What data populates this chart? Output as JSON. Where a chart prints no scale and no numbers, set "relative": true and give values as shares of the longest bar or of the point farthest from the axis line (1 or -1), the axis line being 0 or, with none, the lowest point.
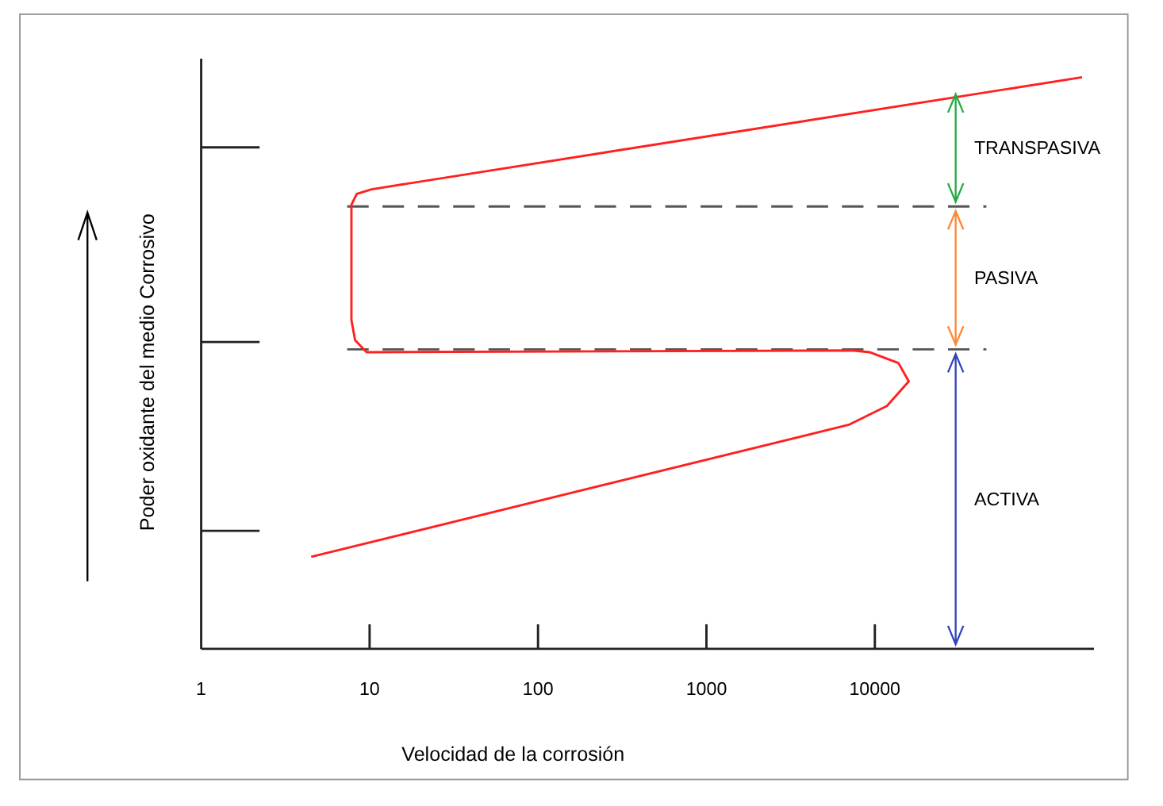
{
  "chart_data": {
    "type": "line",
    "xlabel": "Velocidad de la corrosión",
    "ylabel": "Poder oxidante del medio Corrosivo",
    "log": "x",
    "relative": true,
    "xlim": [
      1,
      200000
    ],
    "xticks": [
      1,
      10,
      100,
      1000,
      10000
    ],
    "series": [
      {
        "color": "#ff2020",
        "x": [
          4.5,
          7000,
          11800,
          15900,
          13800,
          9300,
          7350,
          9.6,
          8.2,
          7.8,
          7.8,
          8.4,
          10.3,
          170000
        ],
        "values": [
          0.161,
          0.392,
          0.425,
          0.468,
          0.5,
          0.519,
          0.522,
          0.519,
          0.54,
          0.575,
          0.777,
          0.796,
          0.804,
          1
        ]
      }
    ],
    "ref_lines": [
      {
        "axis": "y",
        "value": 0.774,
        "color": "#555555",
        "line_style": "dashed"
      },
      {
        "axis": "y",
        "value": 0.524,
        "color": "#555555",
        "line_style": "dashed"
      }
    ],
    "annotations": [
      "TRANSPASIVA",
      "PASIVA",
      "ACTIVA"
    ],
    "line_style": "solid",
    "marker": "none"
  }
}
